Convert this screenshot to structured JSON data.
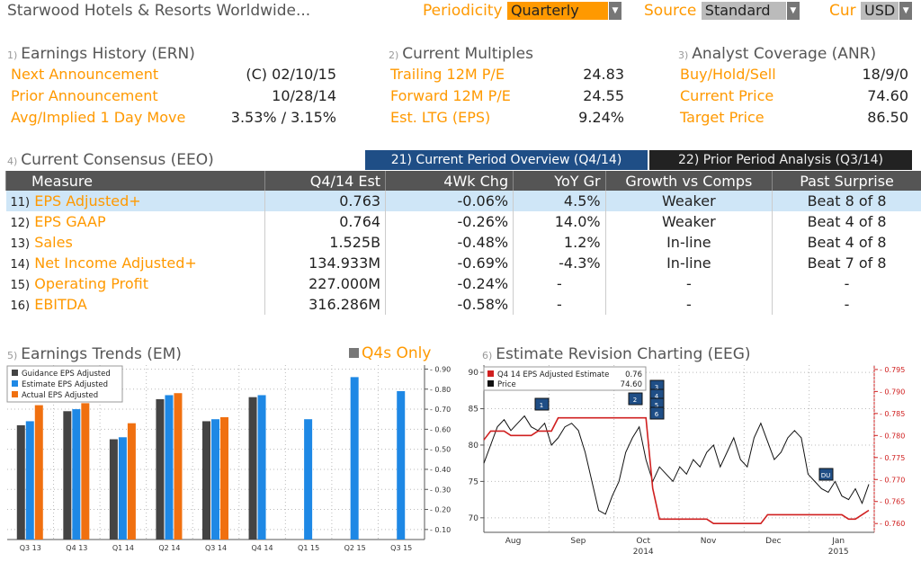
{
  "header": {
    "company": "Starwood Hotels & Resorts Worldwide...",
    "periodicity_label": "Periodicity",
    "periodicity_value": "Quarterly",
    "source_label": "Source",
    "source_value": "Standard",
    "cur_label": "Cur",
    "cur_value": "USD"
  },
  "ern": {
    "num": "1)",
    "title": "Earnings History (ERN)",
    "rows": [
      {
        "label": "Next Announcement",
        "value": "(C)  02/10/15"
      },
      {
        "label": "Prior Announcement",
        "value": "10/28/14"
      },
      {
        "label": "Avg/Implied 1 Day Move",
        "value": "3.53% / 3.15%"
      }
    ]
  },
  "multiples": {
    "num": "2)",
    "title": "Current Multiples",
    "rows": [
      {
        "label": "Trailing 12M P/E",
        "value": "24.83"
      },
      {
        "label": "Forward 12M P/E",
        "value": "24.55"
      },
      {
        "label": "Est. LTG (EPS)",
        "value": "9.24%"
      }
    ]
  },
  "anr": {
    "num": "3)",
    "title": "Analyst Coverage (ANR)",
    "rows": [
      {
        "label": "Buy/Hold/Sell",
        "value": "18/9/0"
      },
      {
        "label": "Current Price",
        "value": "74.60"
      },
      {
        "label": "Target Price",
        "value": "86.50"
      }
    ]
  },
  "consensus": {
    "num": "4)",
    "title": "Current Consensus (EEO)",
    "tab_current": "21) Current Period Overview (Q4/14)",
    "tab_prior": "22) Prior Period Analysis (Q3/14)",
    "columns": [
      "Measure",
      "Q4/14 Est",
      "4Wk Chg",
      "YoY Gr",
      "Growth vs Comps",
      "Past Surprise"
    ],
    "rows": [
      {
        "n": "11)",
        "measure": "EPS Adjusted+",
        "est": "0.763",
        "chg": "-0.06%",
        "yoy": "4.5%",
        "comps": "Weaker",
        "surprise": "Beat 8 of 8"
      },
      {
        "n": "12)",
        "measure": "EPS GAAP",
        "est": "0.764",
        "chg": "-0.26%",
        "yoy": "14.0%",
        "comps": "Weaker",
        "surprise": "Beat 4 of 8"
      },
      {
        "n": "13)",
        "measure": "Sales",
        "est": "1.525B",
        "chg": "-0.48%",
        "yoy": "1.2%",
        "comps": "In-line",
        "surprise": "Beat 4 of 8"
      },
      {
        "n": "14)",
        "measure": "Net Income Adjusted+",
        "est": "134.933M",
        "chg": "-0.69%",
        "yoy": "-4.3%",
        "comps": "In-line",
        "surprise": "Beat 7 of 8"
      },
      {
        "n": "15)",
        "measure": "Operating Profit",
        "est": "227.000M",
        "chg": "-0.24%",
        "yoy": "-",
        "comps": "-",
        "surprise": "-"
      },
      {
        "n": "16)",
        "measure": "EBITDA",
        "est": "316.286M",
        "chg": "-0.58%",
        "yoy": "-",
        "comps": "-",
        "surprise": "-"
      }
    ]
  },
  "em": {
    "num": "5)",
    "title": "Earnings Trends (EM)",
    "toggle": "Q4s Only"
  },
  "eeg": {
    "num": "6)",
    "title": "Estimate Revision Charting (EEG)"
  },
  "chart_data": [
    {
      "type": "bar",
      "categories": [
        "Q3 13",
        "Q4 13",
        "Q1 14",
        "Q2 14",
        "Q3 14",
        "Q4 14",
        "Q1 15",
        "Q2 15",
        "Q3 15"
      ],
      "series": [
        {
          "name": "Guidance EPS Adjusted",
          "color": "#444444",
          "values": [
            0.62,
            0.69,
            0.55,
            0.75,
            0.64,
            0.76,
            null,
            null,
            null
          ]
        },
        {
          "name": "Estimate EPS Adjusted",
          "color": "#1e88e5",
          "values": [
            0.64,
            0.7,
            0.56,
            0.77,
            0.65,
            0.77,
            0.65,
            0.86,
            0.79
          ]
        },
        {
          "name": "Actual EPS Adjusted",
          "color": "#f07010",
          "values": [
            0.72,
            0.73,
            0.63,
            0.78,
            0.66,
            null,
            null,
            null,
            null
          ]
        }
      ],
      "ylim": [
        0.05,
        0.92
      ],
      "yticks": [
        "0.10",
        "0.20",
        "0.30",
        "0.40",
        "0.50",
        "0.60",
        "0.70",
        "0.80",
        "0.90"
      ],
      "grid": true,
      "legend": "top-left"
    },
    {
      "type": "line",
      "x_labels": [
        "Aug",
        "Sep",
        "Oct",
        "Nov",
        "Dec",
        "Jan"
      ],
      "x_year_labels": [
        "2014",
        "2015"
      ],
      "legend": "top-left",
      "legend_entries": [
        {
          "name": "Q4 14 EPS Adjusted Estimate",
          "value": "0.76",
          "color": "#d02020"
        },
        {
          "name": "Price",
          "value": "74.60",
          "color": "#111111"
        }
      ],
      "left_axis": {
        "ticks": [
          "70",
          "75",
          "80",
          "85",
          "90"
        ],
        "range": [
          68,
          91
        ]
      },
      "right_axis": {
        "ticks": [
          "0.760",
          "0.765",
          "0.770",
          "0.775",
          "0.780",
          "0.785",
          "0.790",
          "0.795"
        ],
        "range": [
          0.758,
          0.796
        ]
      },
      "series": [
        {
          "name": "Price",
          "color": "#111111",
          "axis": "left",
          "values": [
            77.5,
            80,
            82.5,
            83.5,
            82,
            83,
            84,
            82.5,
            82,
            83,
            80,
            81,
            82.5,
            83,
            82,
            79,
            75,
            71,
            70.5,
            73,
            75,
            79,
            81,
            82.5,
            78,
            75,
            77,
            76,
            75,
            77,
            76,
            78,
            77,
            79,
            80,
            77,
            79,
            81,
            78,
            77,
            81,
            83,
            80.5,
            78,
            79,
            81,
            82,
            81,
            76,
            75,
            74,
            73.5,
            75,
            73,
            72.5,
            74,
            72,
            74.6
          ]
        },
        {
          "name": "Q4 14 EPS Adjusted Estimate",
          "color": "#d02020",
          "axis": "right",
          "values": [
            0.779,
            0.781,
            0.781,
            0.781,
            0.78,
            0.78,
            0.78,
            0.78,
            0.781,
            0.781,
            0.781,
            0.784,
            0.784,
            0.784,
            0.784,
            0.784,
            0.784,
            0.784,
            0.784,
            0.784,
            0.784,
            0.784,
            0.784,
            0.784,
            0.784,
            0.768,
            0.761,
            0.761,
            0.761,
            0.761,
            0.761,
            0.761,
            0.761,
            0.761,
            0.76,
            0.76,
            0.76,
            0.76,
            0.76,
            0.76,
            0.76,
            0.76,
            0.762,
            0.762,
            0.762,
            0.762,
            0.762,
            0.762,
            0.762,
            0.762,
            0.762,
            0.762,
            0.762,
            0.762,
            0.761,
            0.761,
            0.762,
            0.763
          ]
        }
      ],
      "event_markers": [
        "1",
        "2",
        "3",
        "4",
        "5",
        "6",
        "DU"
      ]
    }
  ]
}
